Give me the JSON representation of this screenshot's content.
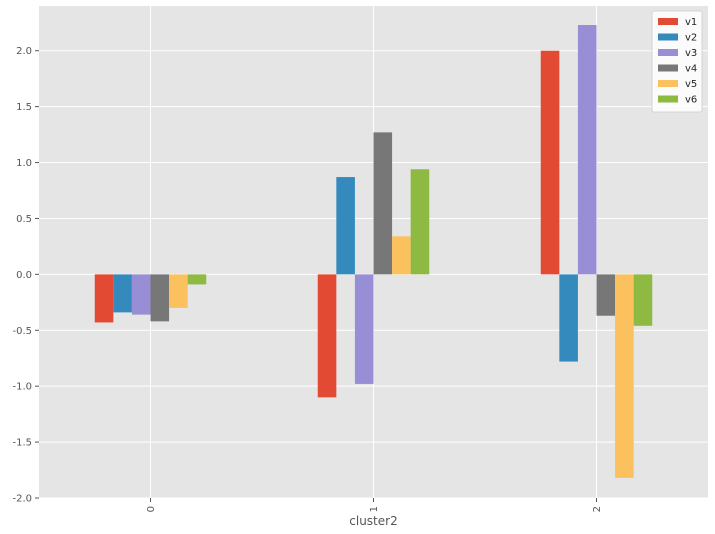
{
  "chart_data": {
    "type": "bar",
    "categories": [
      "0",
      "1",
      "2"
    ],
    "series": [
      {
        "name": "v1",
        "color": "#E24A33",
        "values": [
          -0.43,
          -1.1,
          2.0
        ]
      },
      {
        "name": "v2",
        "color": "#348ABD",
        "values": [
          -0.34,
          0.87,
          -0.78
        ]
      },
      {
        "name": "v3",
        "color": "#988ED5",
        "values": [
          -0.36,
          -0.98,
          2.23
        ]
      },
      {
        "name": "v4",
        "color": "#777777",
        "values": [
          -0.42,
          1.27,
          -0.37
        ]
      },
      {
        "name": "v5",
        "color": "#FBC15E",
        "values": [
          -0.3,
          0.34,
          -1.82
        ]
      },
      {
        "name": "v6",
        "color": "#8EBA42",
        "values": [
          -0.09,
          0.94,
          -0.46
        ]
      }
    ],
    "xlabel": "cluster2",
    "ylabel": "",
    "ylim": [
      -2.0,
      2.4
    ],
    "yticks": [
      "-2.0",
      "-1.5",
      "-1.0",
      "-0.5",
      "0.0",
      "0.5",
      "1.0",
      "1.5",
      "2.0"
    ],
    "grid": true,
    "legend_position": "top-right",
    "style": "ggplot"
  }
}
